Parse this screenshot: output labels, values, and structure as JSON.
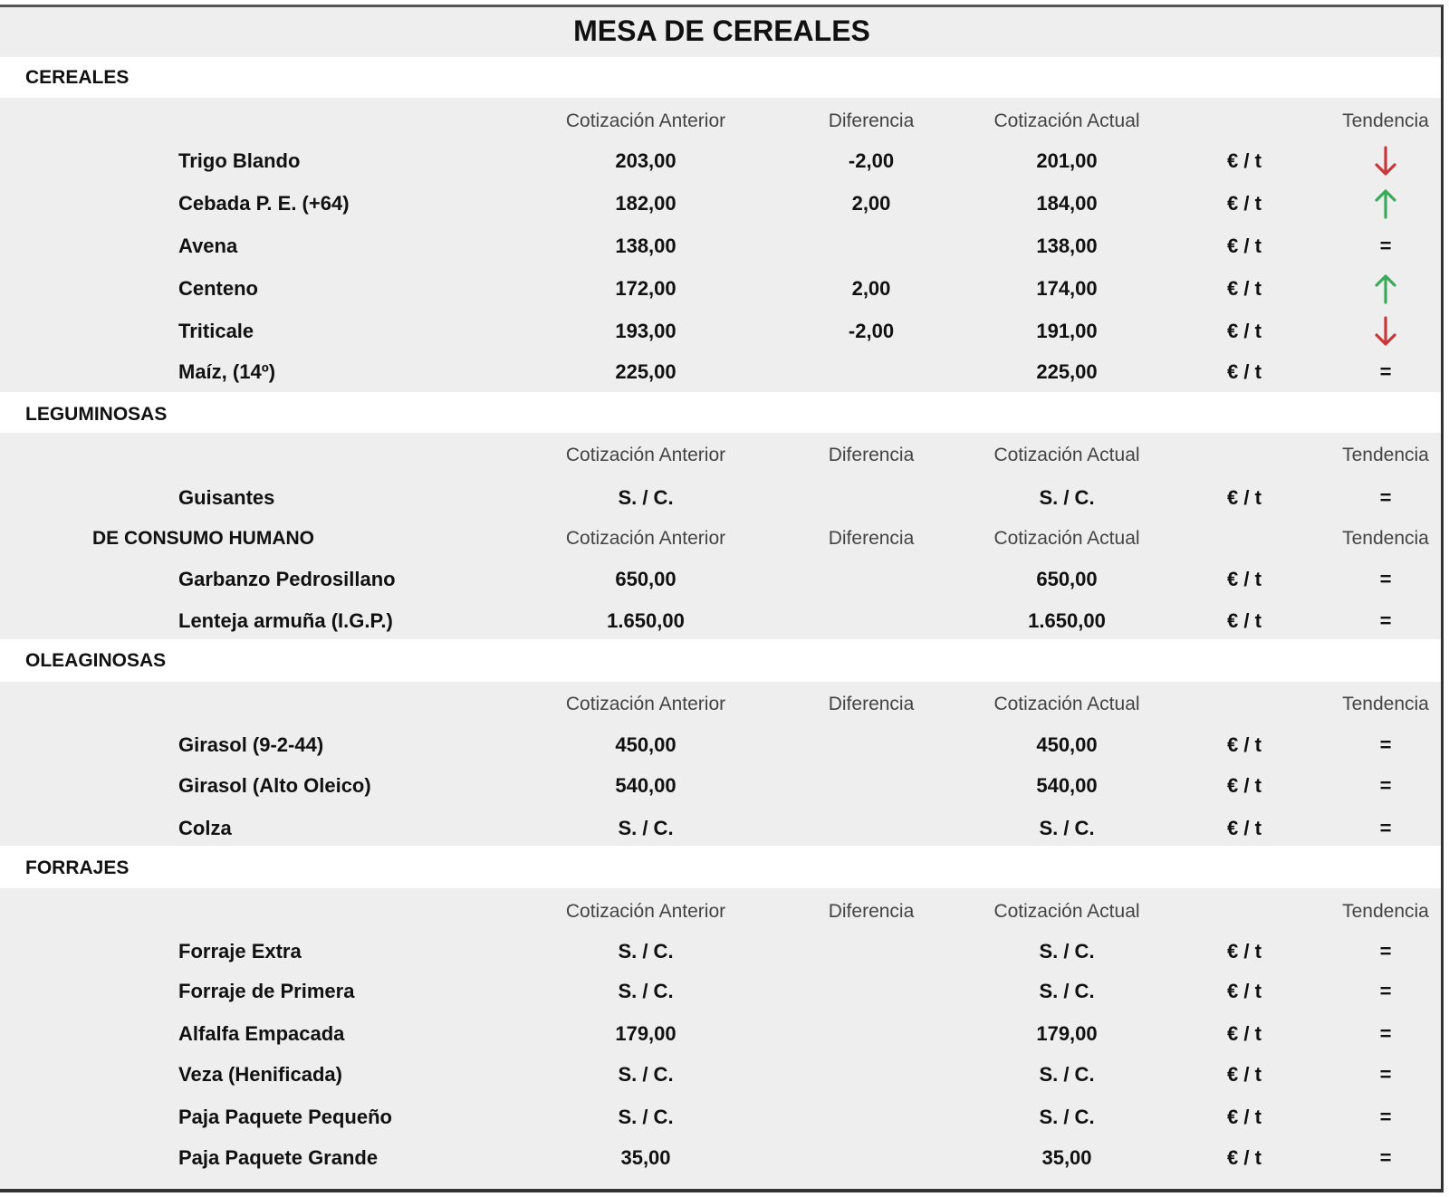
{
  "title": "MESA DE CEREALES",
  "headers": {
    "anterior": "Cotización Anterior",
    "diferencia": "Diferencia",
    "actual": "Cotización Actual",
    "tendencia": "Tendencia"
  },
  "colors": {
    "down": "#c8383a",
    "up": "#3aaa5a"
  },
  "sections": [
    {
      "label": "CEREALES",
      "blocks": [
        {
          "subheader": "",
          "rows": [
            {
              "name": "Trigo Blando",
              "anterior": "203,00",
              "diferencia": "-2,00",
              "actual": "201,00",
              "unit": "€ / t",
              "trend": "down"
            },
            {
              "name": "Cebada P. E. (+64)",
              "anterior": "182,00",
              "diferencia": "2,00",
              "actual": "184,00",
              "unit": "€ / t",
              "trend": "up"
            },
            {
              "name": "Avena",
              "anterior": "138,00",
              "diferencia": "",
              "actual": "138,00",
              "unit": "€ / t",
              "trend": "="
            },
            {
              "name": "Centeno",
              "anterior": "172,00",
              "diferencia": "2,00",
              "actual": "174,00",
              "unit": "€ / t",
              "trend": "up"
            },
            {
              "name": "Triticale",
              "anterior": "193,00",
              "diferencia": "-2,00",
              "actual": "191,00",
              "unit": "€ / t",
              "trend": "down"
            },
            {
              "name": "Maíz, (14º)",
              "anterior": "225,00",
              "diferencia": "",
              "actual": "225,00",
              "unit": "€ / t",
              "trend": "="
            }
          ]
        }
      ]
    },
    {
      "label": "LEGUMINOSAS",
      "blocks": [
        {
          "subheader": "",
          "rows": [
            {
              "name": "Guisantes",
              "anterior": "S. / C.",
              "diferencia": "",
              "actual": "S. / C.",
              "unit": "€ / t",
              "trend": "="
            }
          ]
        },
        {
          "subheader": "DE CONSUMO HUMANO",
          "rows": [
            {
              "name": "Garbanzo Pedrosillano",
              "anterior": "650,00",
              "diferencia": "",
              "actual": "650,00",
              "unit": "€ / t",
              "trend": "="
            },
            {
              "name": "Lenteja armuña (I.G.P.)",
              "anterior": "1.650,00",
              "diferencia": "",
              "actual": "1.650,00",
              "unit": "€ / t",
              "trend": "="
            }
          ]
        }
      ]
    },
    {
      "label": "OLEAGINOSAS",
      "blocks": [
        {
          "subheader": "",
          "rows": [
            {
              "name": "Girasol (9-2-44)",
              "anterior": "450,00",
              "diferencia": "",
              "actual": "450,00",
              "unit": "€ / t",
              "trend": "="
            },
            {
              "name": "Girasol (Alto Oleico)",
              "anterior": "540,00",
              "diferencia": "",
              "actual": "540,00",
              "unit": "€ / t",
              "trend": "="
            },
            {
              "name": "Colza",
              "anterior": "S. / C.",
              "diferencia": "",
              "actual": "S. / C.",
              "unit": "€ / t",
              "trend": "="
            }
          ]
        }
      ]
    },
    {
      "label": "FORRAJES",
      "blocks": [
        {
          "subheader": "",
          "rows": [
            {
              "name": "Forraje Extra",
              "anterior": "S. / C.",
              "diferencia": "",
              "actual": "S. / C.",
              "unit": "€ / t",
              "trend": "="
            },
            {
              "name": "Forraje de Primera",
              "anterior": "S. / C.",
              "diferencia": "",
              "actual": "S. / C.",
              "unit": "€ / t",
              "trend": "="
            },
            {
              "name": "Alfalfa Empacada",
              "anterior": "179,00",
              "diferencia": "",
              "actual": "179,00",
              "unit": "€ / t",
              "trend": "="
            },
            {
              "name": "Veza (Henificada)",
              "anterior": "S. / C.",
              "diferencia": "",
              "actual": "S. / C.",
              "unit": "€ / t",
              "trend": "="
            },
            {
              "name": "Paja Paquete Pequeño",
              "anterior": "S. / C.",
              "diferencia": "",
              "actual": "S. / C.",
              "unit": "€ / t",
              "trend": "="
            },
            {
              "name": "Paja Paquete Grande",
              "anterior": "35,00",
              "diferencia": "",
              "actual": "35,00",
              "unit": "€ / t",
              "trend": "="
            }
          ]
        }
      ]
    }
  ]
}
